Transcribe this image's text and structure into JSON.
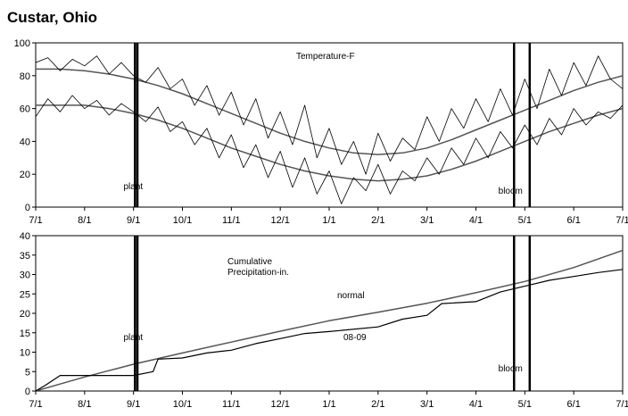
{
  "page_title": "Custar, Ohio",
  "chart_data": [
    {
      "type": "line",
      "title": "Temperature-F",
      "x_tick_labels": [
        "7/1",
        "8/1",
        "9/1",
        "10/1",
        "11/1",
        "12/1",
        "1/1",
        "2/1",
        "3/1",
        "4/1",
        "5/1",
        "6/1",
        "7/1"
      ],
      "ylim": [
        0,
        100
      ],
      "y_ticks": [
        0,
        20,
        40,
        60,
        80,
        100
      ],
      "grid": false,
      "series": [
        {
          "values": [
            [
              0,
              84
            ],
            [
              0.5,
              84
            ],
            [
              1,
              83
            ],
            [
              1.5,
              81
            ],
            [
              2,
              78
            ],
            [
              2.5,
              74
            ],
            [
              3,
              69
            ],
            [
              3.5,
              63
            ],
            [
              4,
              57
            ],
            [
              4.5,
              51
            ],
            [
              5,
              45
            ],
            [
              5.5,
              40
            ],
            [
              6,
              36
            ],
            [
              6.5,
              33
            ],
            [
              7,
              32
            ],
            [
              7.5,
              33
            ],
            [
              8,
              36
            ],
            [
              8.5,
              41
            ],
            [
              9,
              47
            ],
            [
              9.5,
              53
            ],
            [
              10,
              59
            ],
            [
              10.5,
              65
            ],
            [
              11,
              71
            ],
            [
              11.5,
              76
            ],
            [
              12,
              80
            ]
          ]
        },
        {
          "values": [
            [
              0,
              62
            ],
            [
              0.5,
              62
            ],
            [
              1,
              62
            ],
            [
              1.5,
              60
            ],
            [
              2,
              57
            ],
            [
              2.5,
              53
            ],
            [
              3,
              48
            ],
            [
              3.5,
              42
            ],
            [
              4,
              36
            ],
            [
              4.5,
              31
            ],
            [
              5,
              26
            ],
            [
              5.5,
              22
            ],
            [
              6,
              19
            ],
            [
              6.5,
              17
            ],
            [
              7,
              16
            ],
            [
              7.5,
              17
            ],
            [
              8,
              19
            ],
            [
              8.5,
              23
            ],
            [
              9,
              28
            ],
            [
              9.5,
              34
            ],
            [
              10,
              40
            ],
            [
              10.5,
              46
            ],
            [
              11,
              51
            ],
            [
              11.5,
              56
            ],
            [
              12,
              60
            ]
          ]
        },
        {
          "values": [
            [
              0,
              88
            ],
            [
              0.25,
              91
            ],
            [
              0.5,
              83
            ],
            [
              0.75,
              90
            ],
            [
              1,
              86
            ],
            [
              1.25,
              92
            ],
            [
              1.5,
              81
            ],
            [
              1.75,
              88
            ],
            [
              2,
              80
            ],
            [
              2.25,
              76
            ],
            [
              2.5,
              85
            ],
            [
              2.75,
              72
            ],
            [
              3,
              78
            ],
            [
              3.25,
              62
            ],
            [
              3.5,
              74
            ],
            [
              3.75,
              56
            ],
            [
              4,
              70
            ],
            [
              4.25,
              50
            ],
            [
              4.5,
              66
            ],
            [
              4.75,
              42
            ],
            [
              5,
              58
            ],
            [
              5.25,
              38
            ],
            [
              5.5,
              62
            ],
            [
              5.75,
              30
            ],
            [
              6,
              48
            ],
            [
              6.25,
              26
            ],
            [
              6.5,
              40
            ],
            [
              6.75,
              20
            ],
            [
              7,
              45
            ],
            [
              7.25,
              28
            ],
            [
              7.5,
              42
            ],
            [
              7.75,
              35
            ],
            [
              8,
              55
            ],
            [
              8.25,
              40
            ],
            [
              8.5,
              60
            ],
            [
              8.75,
              48
            ],
            [
              9,
              66
            ],
            [
              9.25,
              52
            ],
            [
              9.5,
              72
            ],
            [
              9.75,
              56
            ],
            [
              10,
              78
            ],
            [
              10.25,
              60
            ],
            [
              10.5,
              84
            ],
            [
              10.75,
              68
            ],
            [
              11,
              88
            ],
            [
              11.25,
              74
            ],
            [
              11.5,
              92
            ],
            [
              11.75,
              78
            ],
            [
              12,
              72
            ]
          ]
        },
        {
          "values": [
            [
              0,
              55
            ],
            [
              0.25,
              66
            ],
            [
              0.5,
              58
            ],
            [
              0.75,
              68
            ],
            [
              1,
              60
            ],
            [
              1.25,
              65
            ],
            [
              1.5,
              56
            ],
            [
              1.75,
              63
            ],
            [
              2,
              58
            ],
            [
              2.25,
              52
            ],
            [
              2.5,
              61
            ],
            [
              2.75,
              46
            ],
            [
              3,
              52
            ],
            [
              3.25,
              38
            ],
            [
              3.5,
              48
            ],
            [
              3.75,
              30
            ],
            [
              4,
              44
            ],
            [
              4.25,
              24
            ],
            [
              4.5,
              38
            ],
            [
              4.75,
              18
            ],
            [
              5,
              34
            ],
            [
              5.25,
              12
            ],
            [
              5.5,
              30
            ],
            [
              5.75,
              8
            ],
            [
              6,
              22
            ],
            [
              6.25,
              2
            ],
            [
              6.5,
              18
            ],
            [
              6.75,
              10
            ],
            [
              7,
              26
            ],
            [
              7.25,
              8
            ],
            [
              7.5,
              22
            ],
            [
              7.75,
              16
            ],
            [
              8,
              30
            ],
            [
              8.25,
              20
            ],
            [
              8.5,
              36
            ],
            [
              8.75,
              26
            ],
            [
              9,
              42
            ],
            [
              9.25,
              30
            ],
            [
              9.5,
              46
            ],
            [
              9.75,
              36
            ],
            [
              10,
              50
            ],
            [
              10.25,
              38
            ],
            [
              10.5,
              54
            ],
            [
              10.75,
              44
            ],
            [
              11,
              60
            ],
            [
              11.25,
              50
            ],
            [
              11.5,
              58
            ],
            [
              11.75,
              54
            ],
            [
              12,
              62
            ]
          ]
        }
      ],
      "annotations": [
        {
          "text": "plant",
          "x": 2.03
        },
        {
          "text": "bloom",
          "x": 9.78
        }
      ],
      "vertical_markers": [
        2.03,
        2.08,
        9.78,
        10.1
      ]
    },
    {
      "type": "line",
      "title": "Cumulative Precipitation-in.",
      "title_lines": [
        "Cumulative",
        "Precipitation-in."
      ],
      "x_tick_labels": [
        "7/1",
        "8/1",
        "9/1",
        "10/1",
        "11/1",
        "12/1",
        "1/1",
        "2/1",
        "3/1",
        "4/1",
        "5/1",
        "6/1",
        "7/1"
      ],
      "ylim": [
        0,
        40
      ],
      "y_ticks": [
        0,
        5,
        10,
        15,
        20,
        25,
        30,
        35,
        40
      ],
      "grid": false,
      "series": [
        {
          "name": "normal",
          "values": [
            [
              0,
              0
            ],
            [
              1,
              3.6
            ],
            [
              2,
              6.9
            ],
            [
              3,
              9.8
            ],
            [
              4,
              12.6
            ],
            [
              5,
              15.4
            ],
            [
              6,
              18.1
            ],
            [
              7,
              20.3
            ],
            [
              8,
              22.6
            ],
            [
              9,
              25.3
            ],
            [
              10,
              28.2
            ],
            [
              11,
              31.8
            ],
            [
              12,
              36.2
            ]
          ]
        },
        {
          "name": "08-09",
          "values": [
            [
              0,
              0
            ],
            [
              0.2,
              1.5
            ],
            [
              0.5,
              4.0
            ],
            [
              1.0,
              4.0
            ],
            [
              2.0,
              4.0
            ],
            [
              2.4,
              5.0
            ],
            [
              2.5,
              8.2
            ],
            [
              3.0,
              8.5
            ],
            [
              3.5,
              9.8
            ],
            [
              4.0,
              10.5
            ],
            [
              4.5,
              12.2
            ],
            [
              5.0,
              13.5
            ],
            [
              5.5,
              14.8
            ],
            [
              6.0,
              15.3
            ],
            [
              7.0,
              16.5
            ],
            [
              7.5,
              18.5
            ],
            [
              8.0,
              19.5
            ],
            [
              8.3,
              22.5
            ],
            [
              9.0,
              23.0
            ],
            [
              9.5,
              25.5
            ],
            [
              10.0,
              27.0
            ],
            [
              10.5,
              28.5
            ],
            [
              11.0,
              29.5
            ],
            [
              11.5,
              30.5
            ],
            [
              12.0,
              31.3
            ]
          ]
        }
      ],
      "annotations": [
        {
          "text": "plant",
          "x": 2.03
        },
        {
          "text": "bloom",
          "x": 9.78
        }
      ],
      "vertical_markers": [
        2.03,
        2.08,
        9.78,
        10.1
      ]
    }
  ]
}
